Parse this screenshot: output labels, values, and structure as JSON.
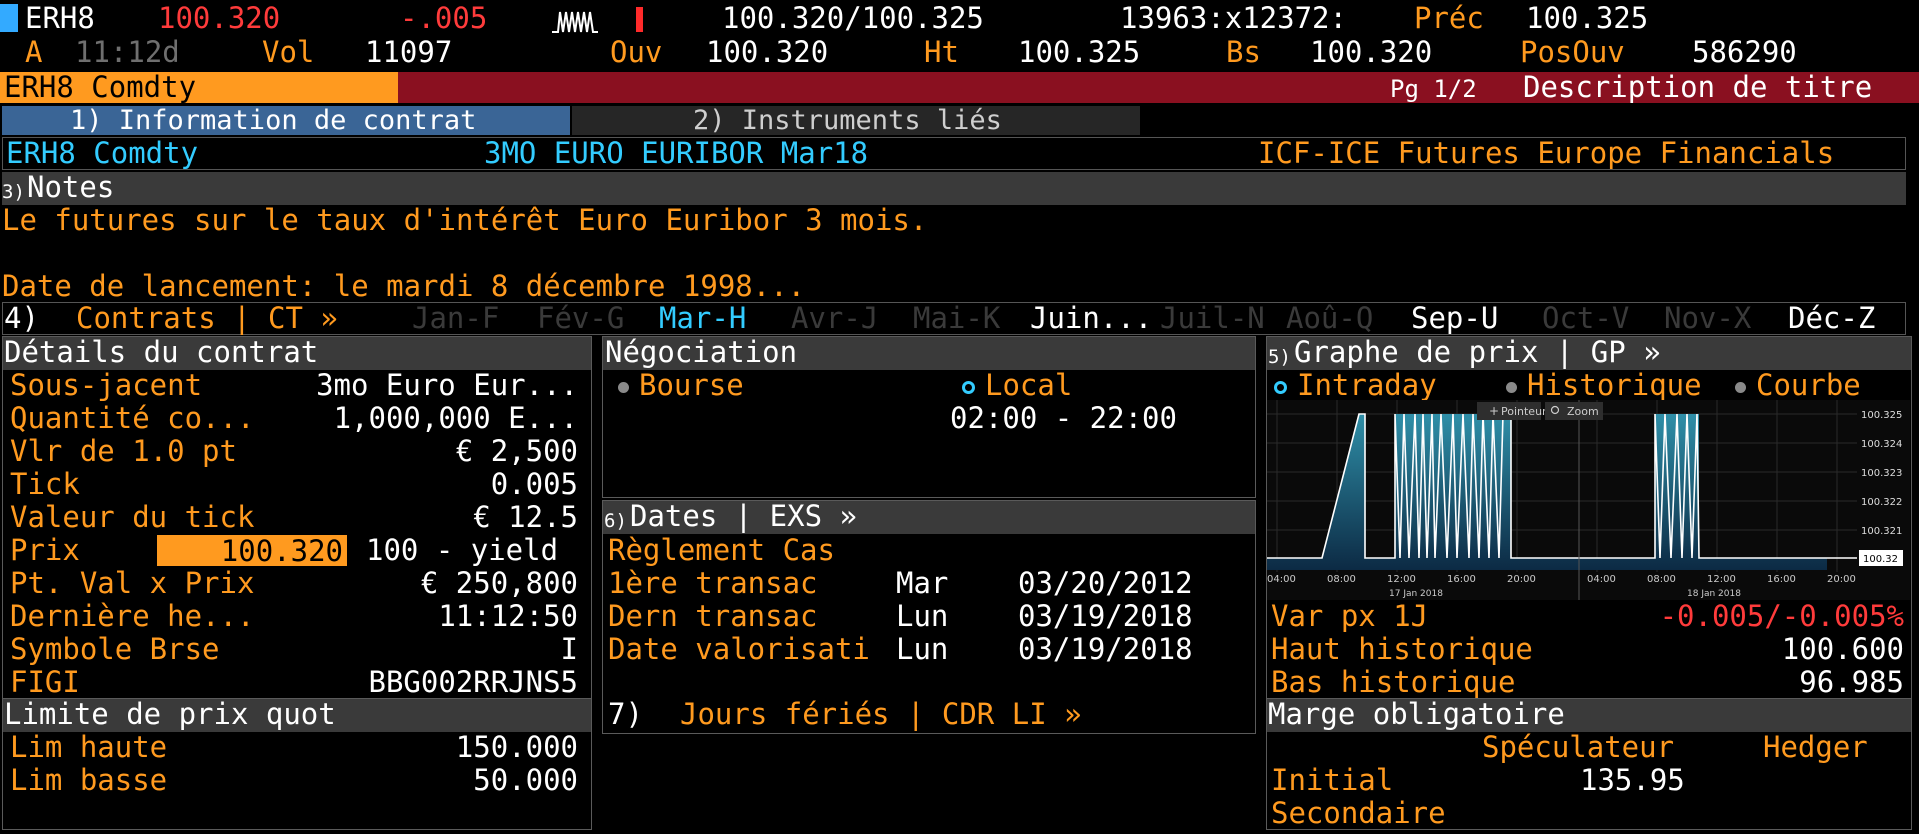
{
  "quote": {
    "ticker": "ERH8",
    "last": "100.320",
    "change": "-.005",
    "bid_ask": "100.320/100.325",
    "sizes": "13963:x12372:",
    "prec_label": "Préc",
    "prec_value": "100.325",
    "a_label": "A",
    "time": "11:12d",
    "vol_label": "Vol",
    "vol_value": "11097",
    "ouv_label": "Ouv",
    "ouv_value": "100.320",
    "ht_label": "Ht",
    "ht_value": "100.325",
    "bs_label": "Bs",
    "bs_value": "100.320",
    "posouv_label": "PosOuv",
    "posouv_value": "586290"
  },
  "titlebar": {
    "security": "ERH8 Comdty",
    "page": "Pg 1/2",
    "title": "Description de titre"
  },
  "tabs": [
    {
      "label": "1) Information de contrat"
    },
    {
      "label": "2) Instruments liés"
    }
  ],
  "info": {
    "security": "ERH8 Comdty",
    "name": "3MO EURO EURIBOR  Mar18",
    "exchange": "ICF-ICE Futures Europe Financials"
  },
  "notes": {
    "header_num": "3)",
    "header": "Notes",
    "line1": "Le futures sur le taux d'intérêt Euro Euribor 3 mois.",
    "line2": "Date de lancement:  le mardi 8 décembre 1998..."
  },
  "contracts": {
    "num": "4)",
    "label": "Contrats | CT »",
    "months": [
      {
        "label": "Jan-F"
      },
      {
        "label": "Fév-G"
      },
      {
        "label": "Mar-H"
      },
      {
        "label": "Avr-J"
      },
      {
        "label": "Mai-K"
      },
      {
        "label": "Juin..."
      },
      {
        "label": "Juil-N"
      },
      {
        "label": "Aoû-Q"
      },
      {
        "label": "Sep-U"
      },
      {
        "label": "Oct-V"
      },
      {
        "label": "Nov-X"
      },
      {
        "label": "Déc-Z"
      }
    ]
  },
  "details": {
    "header": "Détails du contrat",
    "rows": [
      {
        "label": "Sous-jacent",
        "value": "3mo Euro Eur..."
      },
      {
        "label": "Quantité co...",
        "value": "1,000,000 E..."
      },
      {
        "label": "Vlr de 1.0 pt",
        "value": "€ 2,500"
      },
      {
        "label": "Tick",
        "value": "0.005"
      },
      {
        "label": "Valeur du tick",
        "value": "€ 12.5"
      },
      {
        "label": "Prix",
        "value": "100.320",
        "extra": "100 - yield"
      },
      {
        "label": "Pt. Val x Prix",
        "value": "€ 250,800"
      },
      {
        "label": "Dernière he...",
        "value": "11:12:50"
      },
      {
        "label": "Symbole Brse",
        "value": "I"
      },
      {
        "label": "FIGI",
        "value": "BBG002RRJNS5"
      }
    ]
  },
  "limits": {
    "header": "Limite de prix quot",
    "rows": [
      {
        "label": "Lim haute",
        "value": "150.000"
      },
      {
        "label": "Lim basse",
        "value": "50.000"
      }
    ]
  },
  "negociation": {
    "header": "Négociation",
    "opt1": "Bourse",
    "opt2": "Local",
    "hours": "02:00 - 22:00"
  },
  "dates": {
    "num": "6)",
    "header": "Dates  |  EXS »",
    "rows": [
      {
        "label": "Règlement Cas",
        "day": "",
        "date": ""
      },
      {
        "label": "1ère transac",
        "day": "Mar",
        "date": "03/20/2012"
      },
      {
        "label": "Dern transac",
        "day": "Lun",
        "date": "03/19/2018"
      },
      {
        "label": "Date valorisati",
        "day": "Lun",
        "date": "03/19/2018"
      }
    ],
    "holidays_num": "7)",
    "holidays": "Jours fériés | CDR LI »"
  },
  "graph": {
    "num": "5)",
    "header": "Graphe de prix  |  GP »",
    "opt1": "Intraday",
    "opt2": "Historique",
    "opt3": "Courbe",
    "btn_pointer": "Pointeur",
    "btn_zoom": "Zoom",
    "y_ticks": [
      "100.325",
      "100.324",
      "100.323",
      "100.322",
      "100.321",
      "100.32"
    ],
    "last_label": "100.32",
    "x_ticks": [
      "04:00",
      "08:00",
      "12:00",
      "16:00",
      "20:00",
      "04:00",
      "08:00",
      "12:00",
      "16:00",
      "20:00"
    ],
    "day1": "17 Jan 2018",
    "day2": "18 Jan 2018",
    "stats": [
      {
        "label": "Var px 1J",
        "value": "-0.005/-0.005%"
      },
      {
        "label": "Haut historique",
        "value": "100.600"
      },
      {
        "label": "Bas historique",
        "value": "96.985"
      }
    ]
  },
  "margin": {
    "header": "Marge obligatoire",
    "col1": "Spéculateur",
    "col2": "Hedger",
    "rows": [
      {
        "label": "Initial",
        "spec": "135.95",
        "hedger": ""
      },
      {
        "label": "Secondaire",
        "spec": "",
        "hedger": ""
      }
    ]
  },
  "colors": {
    "orange": "#ff9a1f",
    "cyan": "#33ccff",
    "red": "#ff3b3b",
    "titlebar": "#8a1020"
  }
}
